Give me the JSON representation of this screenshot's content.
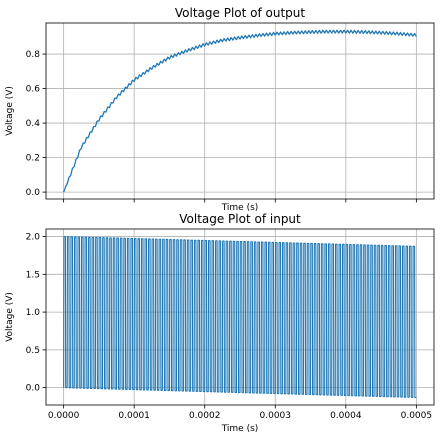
{
  "chart_data": [
    {
      "type": "line",
      "title": "Voltage Plot of output",
      "xlabel": "Time (s)",
      "ylabel": "Voltage (V)",
      "xlim": [
        -2.5e-05,
        0.000525
      ],
      "ylim": [
        -0.04,
        0.98
      ],
      "xticks": [
        0,
        0.0001,
        0.0002,
        0.0003,
        0.0004,
        0.0005
      ],
      "xtick_labels_shown": false,
      "yticks": [
        0.0,
        0.2,
        0.4,
        0.6,
        0.8
      ],
      "ytick_labels": [
        "0.0",
        "0.2",
        "0.4",
        "0.6",
        "0.8"
      ],
      "grid": true,
      "color": "#1f77b4",
      "series": [
        {
          "description": "RC-filter style charging curve with small ripple; rises from 0 V and settles near 0.93 V, drooping slightly to about 0.91 V at the end",
          "x": [
            0,
            2.5e-05,
            5e-05,
            7.5e-05,
            0.0001,
            0.000125,
            0.00015,
            0.000175,
            0.0002,
            0.000225,
            0.00025,
            0.000275,
            0.0003,
            0.000325,
            0.00035,
            0.000375,
            0.0004,
            0.000425,
            0.00045,
            0.000475,
            0.0005
          ],
          "y": [
            0.0,
            0.26,
            0.42,
            0.55,
            0.65,
            0.72,
            0.78,
            0.82,
            0.855,
            0.88,
            0.895,
            0.908,
            0.918,
            0.924,
            0.928,
            0.93,
            0.93,
            0.928,
            0.924,
            0.918,
            0.91
          ],
          "ripple_amplitude": 0.008,
          "cycles": 100
        }
      ]
    },
    {
      "type": "line",
      "title": "Voltage Plot of input",
      "xlabel": "Time (s)",
      "ylabel": "Voltage (V)",
      "xlim": [
        -2.5e-05,
        0.000525
      ],
      "ylim": [
        -0.23,
        2.1
      ],
      "xticks": [
        0,
        0.0001,
        0.0002,
        0.0003,
        0.0004,
        0.0005
      ],
      "xtick_labels": [
        "0.0000",
        "0.0001",
        "0.0002",
        "0.0003",
        "0.0004",
        "0.0005"
      ],
      "yticks": [
        0.0,
        0.5,
        1.0,
        1.5,
        2.0
      ],
      "ytick_labels": [
        "0.0",
        "0.5",
        "1.0",
        "1.5",
        "2.0"
      ],
      "grid": true,
      "color": "#1f77b4",
      "series": [
        {
          "description": "Dense square/triangular oscillation, about 100 cycles over 0 to 0.0005 s, swinging between ~0 V and ~2 V with both levels drifting down slightly",
          "x_start": 0,
          "x_end": 0.0005,
          "cycles": 100,
          "high_start": 2.0,
          "high_end": 1.87,
          "low_start": 0.0,
          "low_end": -0.13
        }
      ]
    }
  ]
}
